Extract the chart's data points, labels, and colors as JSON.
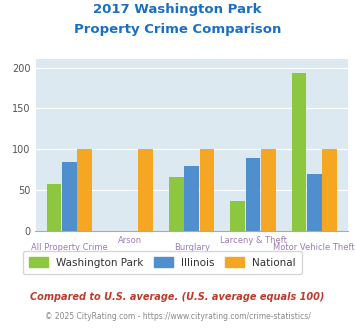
{
  "title_line1": "2017 Washington Park",
  "title_line2": "Property Crime Comparison",
  "categories": [
    "All Property Crime",
    "Arson",
    "Burglary",
    "Larceny & Theft",
    "Motor Vehicle Theft"
  ],
  "washington_park": [
    58,
    0,
    66,
    37,
    193
  ],
  "illinois": [
    85,
    0,
    79,
    89,
    70
  ],
  "national": [
    100,
    100,
    100,
    100,
    100
  ],
  "colors": {
    "washington_park": "#8dc63f",
    "illinois": "#4f8fce",
    "national": "#f5a623"
  },
  "ylim": [
    0,
    210
  ],
  "yticks": [
    0,
    50,
    100,
    150,
    200
  ],
  "bg_color": "#dce9f0",
  "title_color": "#1a6fc4",
  "xlabel_color": "#9e7bb5",
  "footnote1": "Compared to U.S. average. (U.S. average equals 100)",
  "footnote1_color": "#c0392b",
  "footnote2": "© 2025 CityRating.com - https://www.cityrating.com/crime-statistics/",
  "footnote2_color": "#888888",
  "legend_labels": [
    "Washington Park",
    "Illinois",
    "National"
  ]
}
